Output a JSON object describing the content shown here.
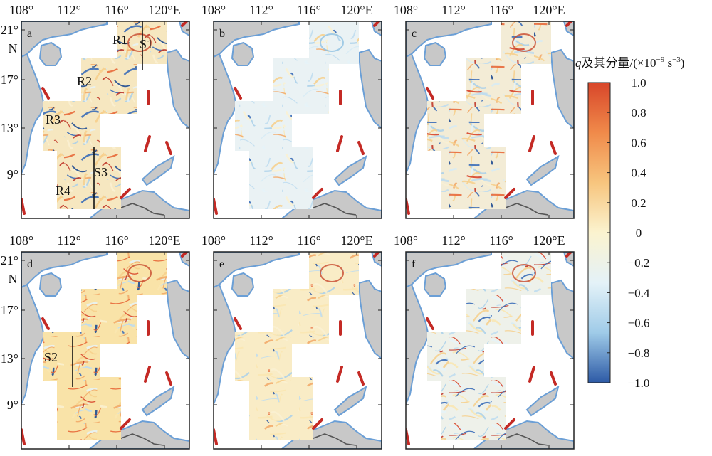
{
  "x_ticks": [
    "108°",
    "112°",
    "116°",
    "120°E"
  ],
  "y_ticks_top": [
    "21°",
    "17°",
    "13°",
    "9°"
  ],
  "y_ticks_bottom": [
    "21°",
    "17°",
    "13°",
    "9°"
  ],
  "n_label": "N",
  "panels": [
    {
      "letter": "a",
      "regions": [
        "R1",
        "R2",
        "R3",
        "R4"
      ],
      "sections": [
        "S1",
        "S3"
      ]
    },
    {
      "letter": "b",
      "regions": [],
      "sections": []
    },
    {
      "letter": "c",
      "regions": [],
      "sections": []
    },
    {
      "letter": "d",
      "regions": [],
      "sections": [
        "S2"
      ]
    },
    {
      "letter": "e",
      "regions": [],
      "sections": []
    },
    {
      "letter": "f",
      "regions": [],
      "sections": []
    }
  ],
  "colorbar": {
    "title_var": "q",
    "title_rest": "及其分量/(×10",
    "title_exp1": "−9",
    "title_unit": " s",
    "title_exp2": "−3",
    "title_close": ")",
    "ticks": [
      "1.0",
      "0.8",
      "0.6",
      "0.4",
      "0.2",
      "0",
      "−0.2",
      "−0.4",
      "−0.6",
      "−0.8",
      "−1.0"
    ],
    "colors": [
      "#d8462a",
      "#f08a4a",
      "#f7c57e",
      "#fbf3cf",
      "#e4f2f8",
      "#9fcbe8",
      "#2d5aa6"
    ]
  },
  "colors": {
    "land": "#c8c8c8",
    "coast": "#6b9fd6",
    "track": "#c42a25"
  }
}
